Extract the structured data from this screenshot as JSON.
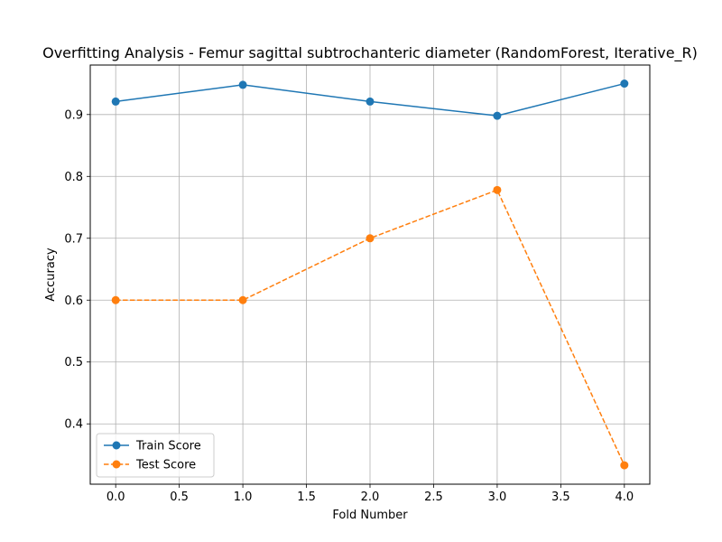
{
  "chart_data": {
    "type": "line",
    "title": "Overfitting Analysis - Femur sagittal subtrochanteric diameter (RandomForest, Iterative_R)",
    "xlabel": "Fold Number",
    "ylabel": "Accuracy",
    "x": [
      0,
      1,
      2,
      3,
      4
    ],
    "xlim": [
      -0.2,
      4.2
    ],
    "ylim": [
      0.3025,
      0.98
    ],
    "xticks": [
      0.0,
      0.5,
      1.0,
      1.5,
      2.0,
      2.5,
      3.0,
      3.5,
      4.0
    ],
    "xtick_labels": [
      "0.0",
      "0.5",
      "1.0",
      "1.5",
      "2.0",
      "2.5",
      "3.0",
      "3.5",
      "4.0"
    ],
    "yticks": [
      0.4,
      0.5,
      0.6,
      0.7,
      0.8,
      0.9
    ],
    "ytick_labels": [
      "0.4",
      "0.5",
      "0.6",
      "0.7",
      "0.8",
      "0.9"
    ],
    "grid": true,
    "legend_position": "lower-left",
    "series": [
      {
        "name": "Train Score",
        "values": [
          0.921,
          0.948,
          0.921,
          0.898,
          0.95
        ],
        "color": "#1f77b4",
        "style": "solid",
        "marker": "circle"
      },
      {
        "name": "Test Score",
        "values": [
          0.6,
          0.6,
          0.7,
          0.778,
          0.333
        ],
        "color": "#ff7f0e",
        "style": "dashed",
        "marker": "circle"
      }
    ]
  }
}
